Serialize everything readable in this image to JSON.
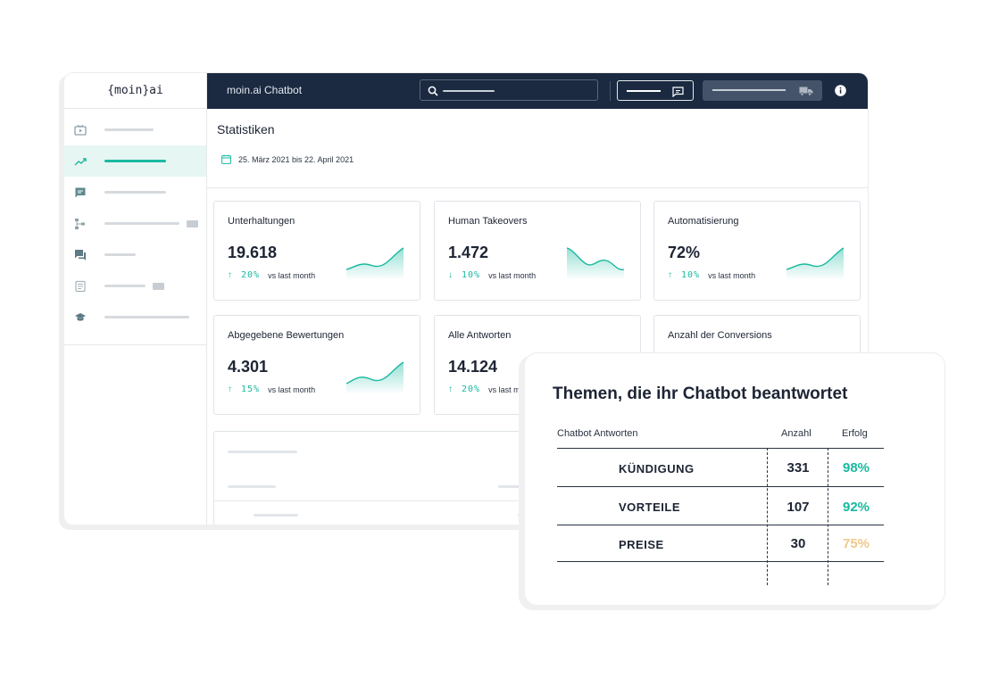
{
  "app": {
    "logo": "{moin}ai",
    "title": "moin.ai Chatbot"
  },
  "sidebar": {
    "items": [
      {
        "icon": "video-icon",
        "active": false,
        "badge": false
      },
      {
        "icon": "trend-line-icon",
        "active": true,
        "badge": false
      },
      {
        "icon": "chat-bubble-icon",
        "active": false,
        "badge": false
      },
      {
        "icon": "flow-tree-icon",
        "active": false,
        "badge": true
      },
      {
        "icon": "conversation-icon",
        "active": false,
        "badge": false
      },
      {
        "icon": "document-icon",
        "active": false,
        "badge": true
      },
      {
        "icon": "graduation-cap-icon",
        "active": false,
        "badge": false
      }
    ]
  },
  "page": {
    "title": "Statistiken",
    "date_range": "25. März 2021 bis 22. April 2021"
  },
  "stats": [
    {
      "label": "Unterhaltungen",
      "value": "19.618",
      "direction": "up",
      "change": "20%",
      "vs": "vs last month",
      "shape": "rising"
    },
    {
      "label": "Human Takeovers",
      "value": "1.472",
      "direction": "down",
      "change": "10%",
      "vs": "vs last month",
      "shape": "falling"
    },
    {
      "label": "Automatisierung",
      "value": "72%",
      "direction": "up",
      "change": "10%",
      "vs": "vs last month",
      "shape": "rising"
    },
    {
      "label": "Abgegebene Bewertungen",
      "value": "4.301",
      "direction": "up",
      "change": "15%",
      "vs": "vs last month",
      "shape": "rising"
    },
    {
      "label": "Alle Antworten",
      "value": "14.124",
      "direction": "up",
      "change": "20%",
      "vs": "vs last month",
      "shape": "rising"
    },
    {
      "label": "Anzahl der Conversions",
      "value": "",
      "direction": "",
      "change": "",
      "vs": "",
      "shape": ""
    }
  ],
  "overlay": {
    "title": "Themen, die ihr Chatbot beantwortet",
    "headers": {
      "topic": "Chatbot Antworten",
      "count": "Anzahl",
      "success": "Erfolg"
    },
    "rows": [
      {
        "topic": "KÜNDIGUNG",
        "count": "331",
        "success": "98%",
        "color": "#19b9a0"
      },
      {
        "topic": "VORTEILE",
        "count": "107",
        "success": "92%",
        "color": "#19b9a0"
      },
      {
        "topic": "PREISE",
        "count": "30",
        "success": "75%",
        "color": "#f0c88a"
      }
    ]
  },
  "colors": {
    "accent": "#19b9a0",
    "topbar": "#1b2a41",
    "warning": "#f0c88a"
  }
}
